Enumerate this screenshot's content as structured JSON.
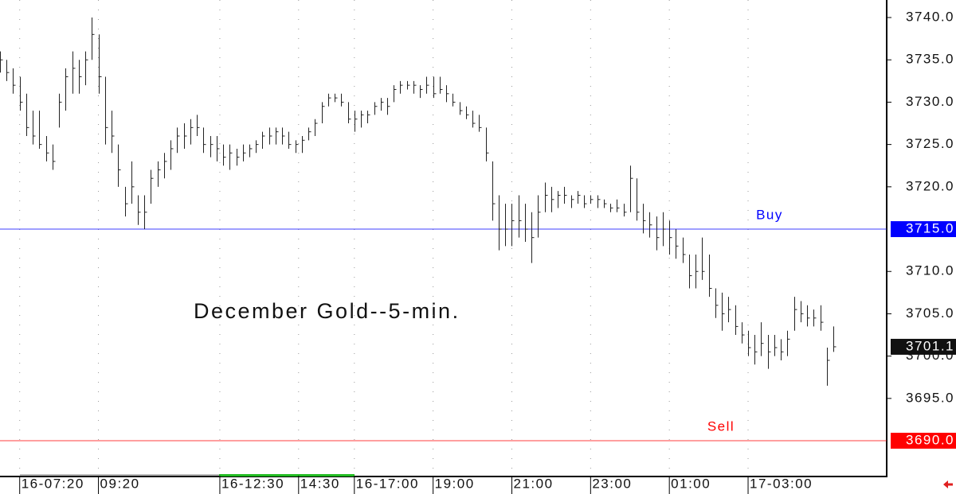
{
  "chart_data": {
    "type": "ohlc",
    "annotation": "December Gold--5-min.",
    "color": "#222222",
    "grid": true,
    "xlim": [
      0,
      270
    ],
    "xticks": [
      {
        "value": 6,
        "label": "16-07:20"
      },
      {
        "value": 30,
        "label": "09:20"
      },
      {
        "value": 67,
        "label": "16-12:30"
      },
      {
        "value": 91,
        "label": "14:30"
      },
      {
        "value": 108,
        "label": "16-17:00"
      },
      {
        "value": 132,
        "label": "19:00"
      },
      {
        "value": 156,
        "label": "21:00"
      },
      {
        "value": 180,
        "label": "23:00"
      },
      {
        "value": 204,
        "label": "01:00"
      },
      {
        "value": 228,
        "label": "17-03:00"
      }
    ],
    "ylim": [
      3685.87,
      3742.07
    ],
    "yticks": [
      {
        "value": 3695,
        "label": "3695.0"
      },
      {
        "value": 3700,
        "label": "3700.0"
      },
      {
        "value": 3705,
        "label": "3705.0"
      },
      {
        "value": 3710,
        "label": "3710.0"
      },
      {
        "value": 3720,
        "label": "3720.0"
      },
      {
        "value": 3725,
        "label": "3725.0"
      },
      {
        "value": 3730,
        "label": "3730.0"
      },
      {
        "value": 3735,
        "label": "3735.0"
      },
      {
        "value": 3740,
        "label": "3740.0"
      }
    ],
    "reference_lines": [
      {
        "name": "Buy",
        "value": 3715,
        "value_label": "3715.0",
        "color": "#0000ff"
      },
      {
        "name": "Sell",
        "value": 3690,
        "value_label": "3690.0",
        "color": "#ff0000"
      }
    ],
    "last_price": {
      "value": 3701.1,
      "label": "3701.1"
    },
    "x": [
      0,
      2,
      4,
      6,
      8,
      10,
      12,
      14,
      16,
      18,
      20,
      22,
      24,
      26,
      28,
      30,
      32,
      34,
      36,
      38,
      40,
      42,
      44,
      46,
      48,
      50,
      52,
      54,
      56,
      58,
      60,
      62,
      64,
      66,
      68,
      70,
      72,
      74,
      76,
      78,
      80,
      82,
      84,
      86,
      88,
      90,
      92,
      94,
      96,
      98,
      100,
      102,
      104,
      106,
      108,
      110,
      112,
      114,
      116,
      118,
      120,
      122,
      124,
      126,
      128,
      130,
      132,
      134,
      136,
      138,
      140,
      142,
      144,
      146,
      148,
      150,
      152,
      154,
      156,
      158,
      160,
      162,
      164,
      166,
      168,
      170,
      172,
      174,
      176,
      178,
      180,
      182,
      184,
      186,
      188,
      190,
      192,
      194,
      196,
      198,
      200,
      202,
      204,
      206,
      208,
      210,
      212,
      214,
      216,
      218,
      220,
      222,
      224,
      226,
      228,
      230,
      232,
      234,
      236,
      238,
      240,
      242,
      244,
      246,
      248,
      250,
      252,
      254
    ],
    "high": [
      3736,
      3735,
      3734,
      3733,
      3731,
      3729,
      3729,
      3726,
      3725,
      3731,
      3734,
      3736,
      3735,
      3736,
      3740,
      3738,
      3733,
      3729,
      3725,
      3720,
      3723,
      3719,
      3719,
      3722,
      3723,
      3724,
      3725.5,
      3727,
      3727.5,
      3728,
      3728.5,
      3727,
      3726,
      3726,
      3725,
      3725,
      3724.5,
      3725,
      3725,
      3725.5,
      3726.5,
      3727,
      3727,
      3727,
      3726.5,
      3725.5,
      3726,
      3727,
      3728,
      3730,
      3731,
      3731,
      3731,
      3730,
      3729,
      3729,
      3729,
      3730,
      3730.5,
      3730.5,
      3732,
      3732.5,
      3732.5,
      3732.5,
      3732,
      3733,
      3733,
      3733,
      3732,
      3731,
      3730,
      3729.5,
      3729,
      3728.5,
      3727,
      3723,
      3719,
      3718,
      3718,
      3719,
      3718,
      3717,
      3719,
      3720.5,
      3720,
      3719.5,
      3720,
      3719,
      3719.5,
      3719,
      3719,
      3719,
      3718.5,
      3718,
      3718.5,
      3718,
      3722.5,
      3721,
      3718,
      3717,
      3716.5,
      3717,
      3716,
      3715,
      3714,
      3712,
      3712,
      3714,
      3712,
      3708,
      3707.5,
      3707,
      3706,
      3704,
      3703,
      3702.5,
      3704,
      3702.5,
      3702.5,
      3702,
      3703,
      3707,
      3706.5,
      3706,
      3705.5,
      3706,
      3701,
      3703.5
    ],
    "low": [
      3733.5,
      3732.5,
      3731,
      3729,
      3726,
      3725,
      3724.5,
      3723,
      3722,
      3727,
      3729,
      3731,
      3731,
      3732,
      3735,
      3731,
      3725,
      3724,
      3720,
      3716.5,
      3718,
      3715.5,
      3715,
      3718,
      3720,
      3721,
      3722,
      3724,
      3724.5,
      3725,
      3726,
      3724,
      3723.5,
      3723,
      3722.5,
      3722,
      3722.5,
      3723,
      3723.5,
      3724,
      3724.5,
      3725,
      3725,
      3725,
      3724.5,
      3724,
      3724,
      3725.5,
      3726,
      3727.5,
      3729.5,
      3730,
      3729.5,
      3727.5,
      3726.5,
      3727,
      3727.5,
      3728.5,
      3729,
      3728.5,
      3730,
      3731,
      3731.5,
      3731,
      3730.5,
      3731,
      3730.5,
      3731,
      3730,
      3729.5,
      3728.5,
      3728,
      3727,
      3726.5,
      3723,
      3716,
      3712.5,
      3713,
      3713,
      3714,
      3713.5,
      3711,
      3714,
      3717,
      3717,
      3717.5,
      3718,
      3717.5,
      3718,
      3717.5,
      3718,
      3717.5,
      3717.5,
      3717,
      3717,
      3716.5,
      3717,
      3716,
      3714.5,
      3714,
      3712.5,
      3713,
      3712,
      3711.5,
      3711,
      3708,
      3708,
      3709,
      3707,
      3704.5,
      3703,
      3704,
      3702.5,
      3701.5,
      3700,
      3699,
      3700,
      3698.5,
      3700,
      3699.5,
      3700,
      3703,
      3704,
      3703.5,
      3703.5,
      3703,
      3696.5,
      3700.5
    ],
    "close": [
      3735,
      3733.5,
      3732,
      3730,
      3727,
      3726,
      3725,
      3724,
      3723,
      3730,
      3733,
      3734,
      3733,
      3735,
      3738,
      3733,
      3727,
      3726,
      3722,
      3718,
      3720,
      3717,
      3717,
      3721,
      3722,
      3723,
      3724.5,
      3726,
      3726,
      3727,
      3727,
      3725,
      3725,
      3724.5,
      3723.5,
      3724,
      3723.5,
      3724,
      3724.5,
      3725,
      3726,
      3726,
      3726.5,
      3726,
      3725,
      3725,
      3725.5,
      3726.5,
      3727.5,
      3729.5,
      3730.5,
      3730.5,
      3730,
      3728,
      3728,
      3728.5,
      3728.5,
      3729.5,
      3730,
      3729.5,
      3731.5,
      3732,
      3732,
      3732,
      3731.5,
      3732,
      3731,
      3731.5,
      3731,
      3730,
      3729,
      3728.5,
      3727.5,
      3727,
      3724,
      3718,
      3715,
      3715,
      3716,
      3716,
      3715,
      3714,
      3717,
      3719,
      3718.5,
      3719,
      3719,
      3718.5,
      3719,
      3718,
      3718.5,
      3718.5,
      3718,
      3717.5,
      3717.5,
      3717,
      3721,
      3717,
      3716,
      3715.5,
      3714,
      3715,
      3714,
      3713,
      3712,
      3709.5,
      3710,
      3710,
      3708,
      3706,
      3705,
      3705.5,
      3703.5,
      3702.5,
      3701,
      3700.5,
      3701.5,
      3700.5,
      3701,
      3700.5,
      3702,
      3705.5,
      3705,
      3704.5,
      3704.5,
      3704,
      3699.5,
      3701.1
    ]
  }
}
